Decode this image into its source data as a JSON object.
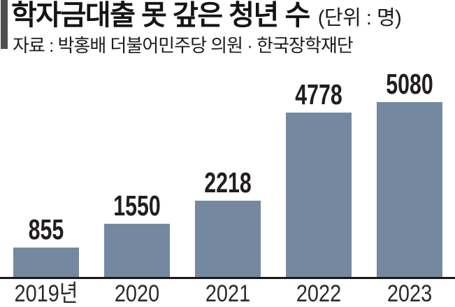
{
  "header": {
    "title": "학자금대출 못 갚은 청년 수",
    "unit_label": "(단위 : 명)",
    "source": "자료 : 박홍배 더불어민주당 의원 · 한국장학재단"
  },
  "colors": {
    "bar": "#7488a0",
    "accent": "#4e4e50",
    "axis_line": "#191919",
    "value_label": "#221e1f",
    "axis_label": "#2a2a2a"
  },
  "chart_data": {
    "type": "bar",
    "title": "학자금대출 못 갚은 청년 수",
    "unit": "명",
    "categories": [
      "2019년",
      "2020",
      "2021",
      "2022",
      "2023"
    ],
    "values": [
      855,
      1550,
      2218,
      4778,
      5080
    ],
    "xlabel": "",
    "ylabel": "",
    "ylim": [
      0,
      5080
    ],
    "grid": false,
    "legend": false,
    "data_labels": true,
    "orientation": "vertical"
  }
}
